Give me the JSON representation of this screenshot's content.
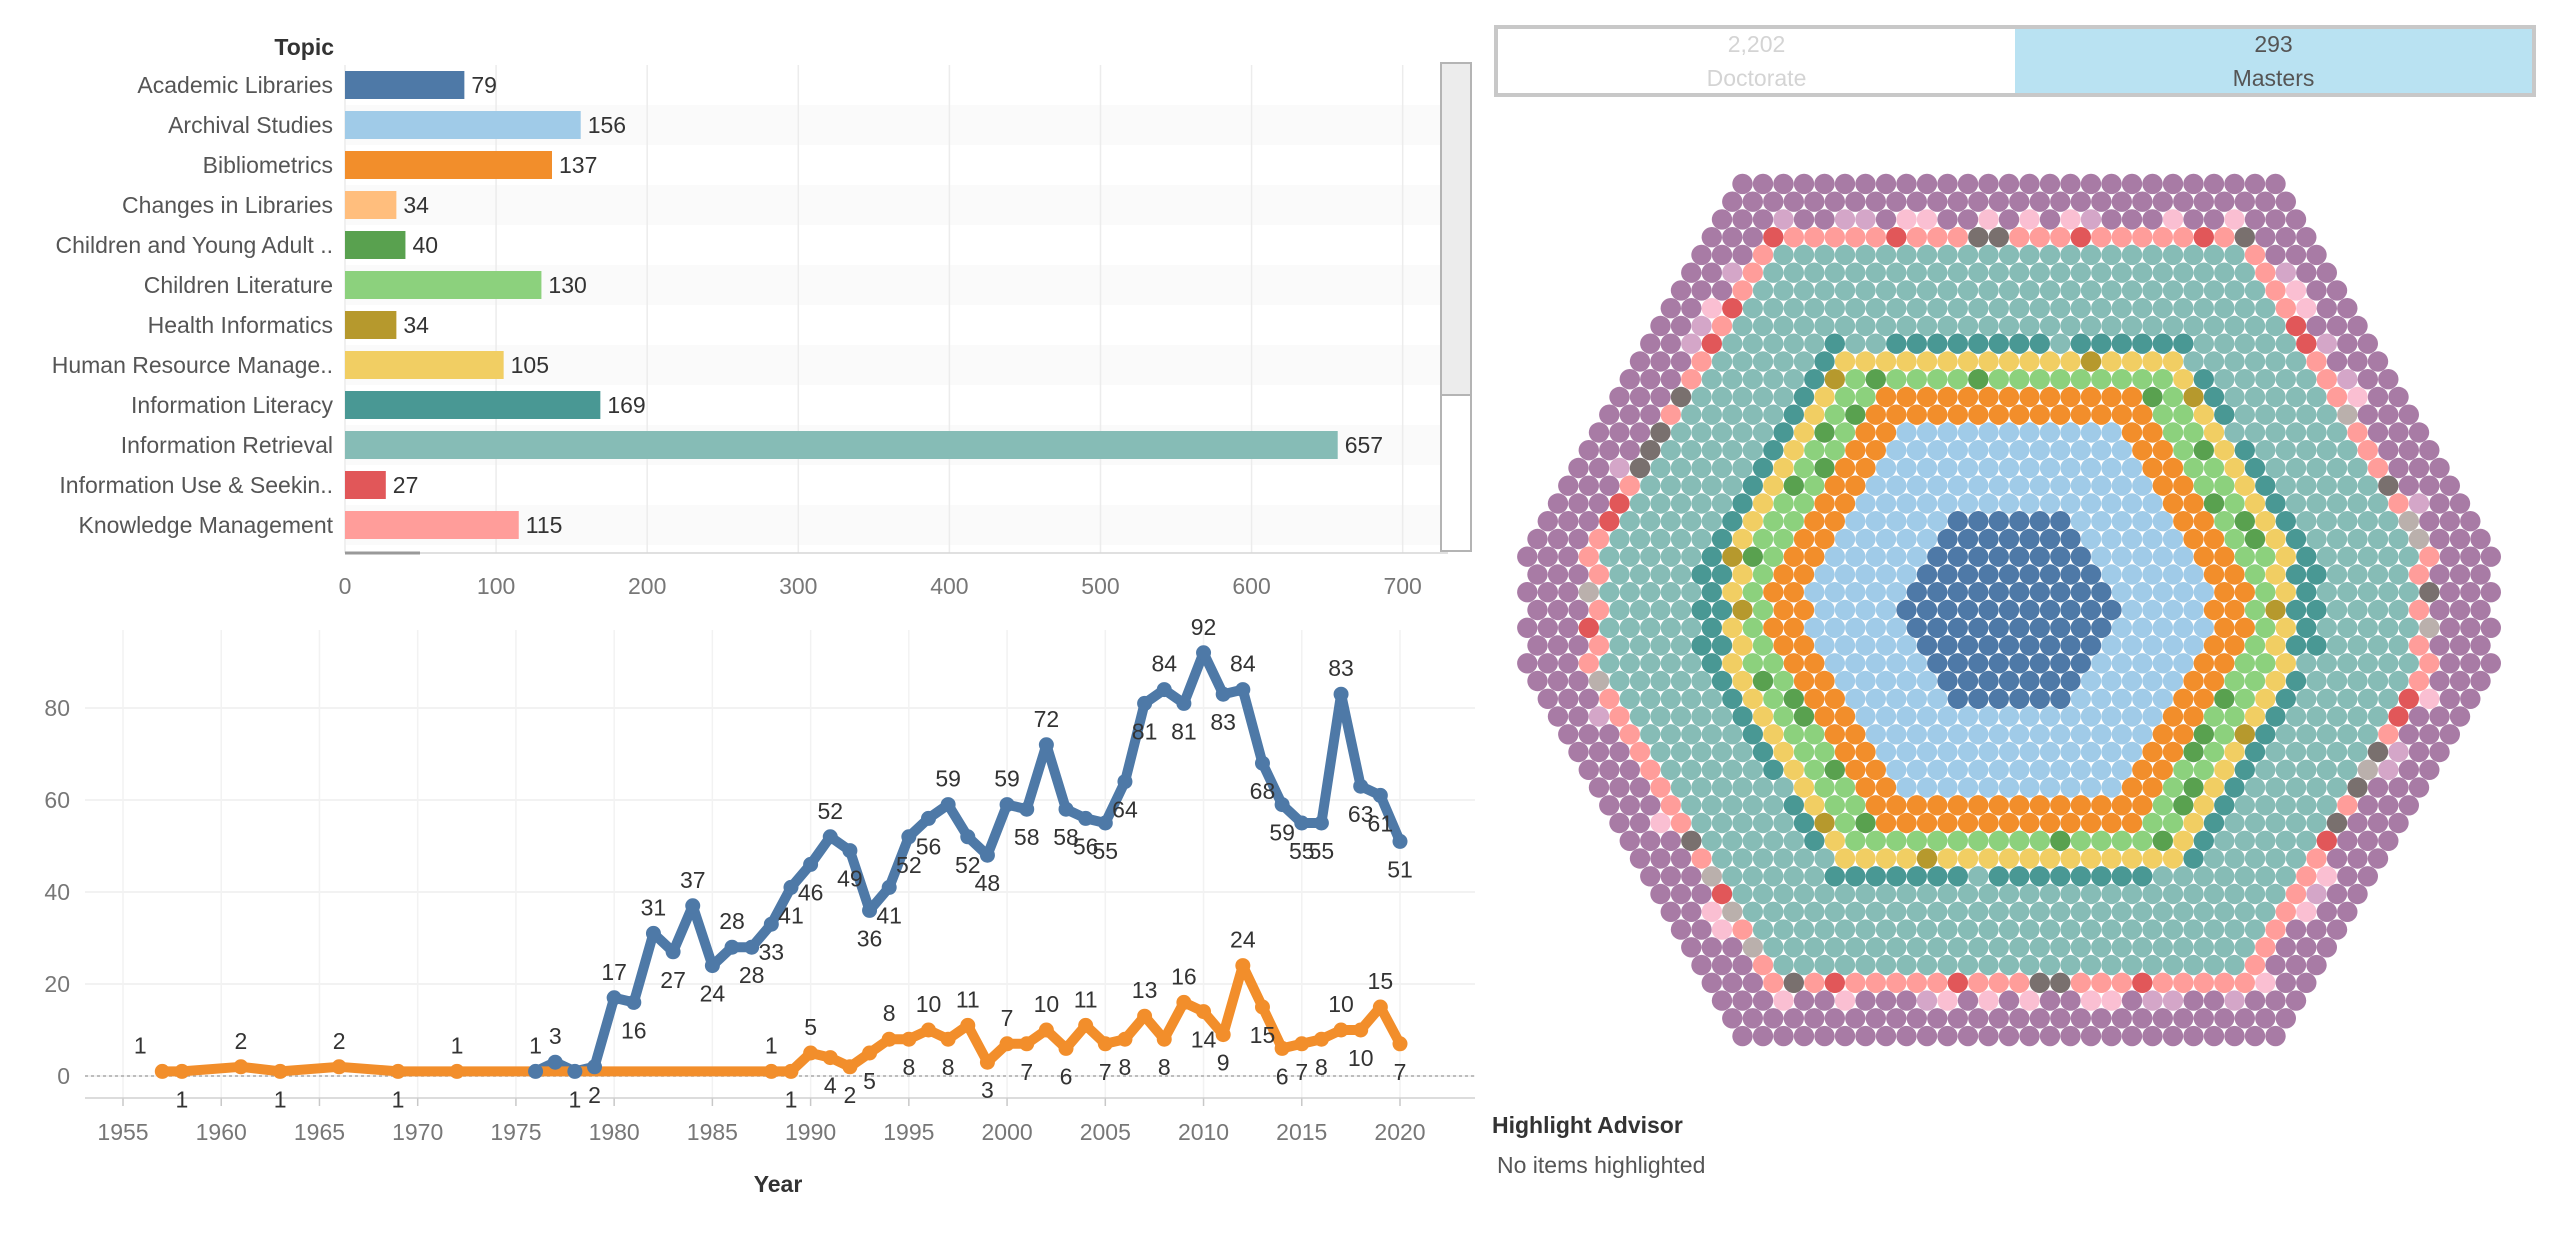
{
  "bar_chart": {
    "header": "Topic",
    "x_ticks": [
      "0",
      "100",
      "200",
      "300",
      "400",
      "500",
      "600",
      "700"
    ]
  },
  "line_chart": {
    "x_axis_title": "Year",
    "x_ticks": [
      "1955",
      "1960",
      "1965",
      "1970",
      "1975",
      "1980",
      "1985",
      "1990",
      "1995",
      "2000",
      "2005",
      "2010",
      "2015",
      "2020"
    ],
    "y_ticks": [
      "0",
      "20",
      "40",
      "60",
      "80"
    ]
  },
  "toggle": {
    "options": [
      {
        "count": "2,202",
        "label": "Doctorate",
        "active": false
      },
      {
        "count": "293",
        "label": "Masters",
        "active": true
      }
    ]
  },
  "highlight": {
    "title": "Highlight Advisor",
    "placeholder": "No items highlighted"
  },
  "colors": {
    "accent_active": "#b9e2f2",
    "series_blue": "#4e79a7",
    "series_orange": "#f28e2b",
    "bubble_outer": "#a87ba5"
  },
  "chart_data": [
    {
      "type": "bar",
      "orientation": "horizontal",
      "title": "Topic",
      "categories": [
        "Academic Libraries",
        "Archival Studies",
        "Bibliometrics",
        "Changes in Libraries",
        "Children and Young Adult ..",
        "Children Literature",
        "Health Informatics",
        "Human Resource Manage..",
        "Information Literacy",
        "Information Retrieval",
        "Information Use & Seekin..",
        "Knowledge Management"
      ],
      "values": [
        79,
        156,
        137,
        34,
        40,
        130,
        34,
        105,
        169,
        657,
        27,
        115
      ],
      "colors": [
        "#4e79a7",
        "#a0cbe8",
        "#f28e2b",
        "#ffbe7d",
        "#59a14f",
        "#8cd17d",
        "#b6992d",
        "#f1ce63",
        "#499894",
        "#86bcb6",
        "#e15759",
        "#ff9d9a"
      ],
      "xlim": [
        0,
        730
      ],
      "grid": true
    },
    {
      "type": "line",
      "xlabel": "Year",
      "ylabel": "",
      "xlim": [
        1953,
        2022
      ],
      "ylim": [
        -4,
        96
      ],
      "series": [
        {
          "color": "#4e79a7",
          "x": [
            1976,
            1977,
            1978,
            1979,
            1980,
            1981,
            1982,
            1983,
            1984,
            1985,
            1986,
            1987,
            1988,
            1989,
            1990,
            1991,
            1992,
            1993,
            1994,
            1995,
            1996,
            1997,
            1998,
            1999,
            2000,
            2001,
            2002,
            2003,
            2004,
            2005,
            2006,
            2007,
            2008,
            2009,
            2010,
            2011,
            2012,
            2013,
            2014,
            2015,
            2016,
            2017,
            2018,
            2019,
            2020
          ],
          "y": [
            1,
            3,
            1,
            2,
            17,
            16,
            31,
            27,
            37,
            24,
            28,
            28,
            33,
            41,
            46,
            52,
            49,
            36,
            41,
            52,
            56,
            59,
            52,
            48,
            59,
            58,
            72,
            58,
            56,
            55,
            64,
            81,
            84,
            81,
            92,
            83,
            84,
            68,
            59,
            55,
            55,
            83,
            63,
            61,
            51
          ]
        },
        {
          "color": "#f28e2b",
          "x": [
            1957,
            1958,
            1961,
            1963,
            1966,
            1969,
            1972,
            1988,
            1989,
            1990,
            1991,
            1992,
            1993,
            1994,
            1995,
            1996,
            1997,
            1998,
            1999,
            2000,
            2001,
            2002,
            2003,
            2004,
            2005,
            2006,
            2007,
            2008,
            2009,
            2010,
            2011,
            2012,
            2013,
            2014,
            2015,
            2016,
            2017,
            2018,
            2019,
            2020
          ],
          "y": [
            1,
            1,
            2,
            1,
            2,
            1,
            1,
            1,
            1,
            5,
            4,
            2,
            5,
            8,
            8,
            10,
            8,
            11,
            3,
            7,
            7,
            10,
            6,
            11,
            7,
            8,
            13,
            8,
            16,
            14,
            9,
            24,
            15,
            6,
            7,
            8,
            10,
            10,
            15,
            7
          ]
        }
      ],
      "grid": true
    },
    {
      "type": "bubble",
      "description_note": "packed circles colored by topic",
      "rings": [
        "#4e79a7",
        "#a0cbe8",
        "#f28e2b",
        "#8cd17d",
        "#f1ce63",
        "#499894",
        "#86bcb6",
        "#ff9d9a",
        "#a87ba5"
      ]
    }
  ]
}
